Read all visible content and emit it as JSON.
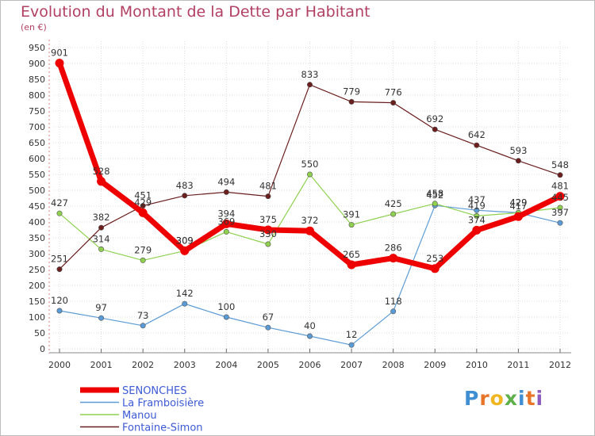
{
  "title": "Evolution du Montant de la Dette par Habitant",
  "unit": "(en €)",
  "logo_text": "Proxiti",
  "chart_data": {
    "type": "line",
    "x": [
      "2000",
      "2001",
      "2002",
      "2003",
      "2004",
      "2005",
      "2006",
      "2007",
      "2008",
      "2009",
      "2010",
      "2011",
      "2012"
    ],
    "ylim": [
      0,
      950
    ],
    "yticks": [
      0,
      50,
      100,
      150,
      200,
      250,
      300,
      350,
      400,
      450,
      500,
      550,
      600,
      650,
      700,
      750,
      800,
      850,
      900,
      950
    ],
    "grid": true,
    "legend_position": "bottom-left",
    "series": [
      {
        "name": "SENONCHES",
        "color": "#ee0000",
        "values": [
          901,
          528,
          429,
          309,
          394,
          375,
          372,
          265,
          286,
          253,
          374,
          417,
          481
        ]
      },
      {
        "name": "La Framboisière",
        "color": "#5b9bd5",
        "values": [
          120,
          97,
          73,
          142,
          100,
          67,
          40,
          12,
          118,
          452,
          437,
          429,
          397
        ]
      },
      {
        "name": "Manou",
        "color": "#8fd14f",
        "values": [
          427,
          314,
          279,
          309,
          369,
          330,
          550,
          391,
          425,
          458,
          419,
          429,
          445
        ]
      },
      {
        "name": "Fontaine-Simon",
        "color": "#6b1e1e",
        "values": [
          251,
          382,
          451,
          483,
          494,
          481,
          833,
          779,
          776,
          692,
          642,
          593,
          548
        ]
      }
    ]
  }
}
